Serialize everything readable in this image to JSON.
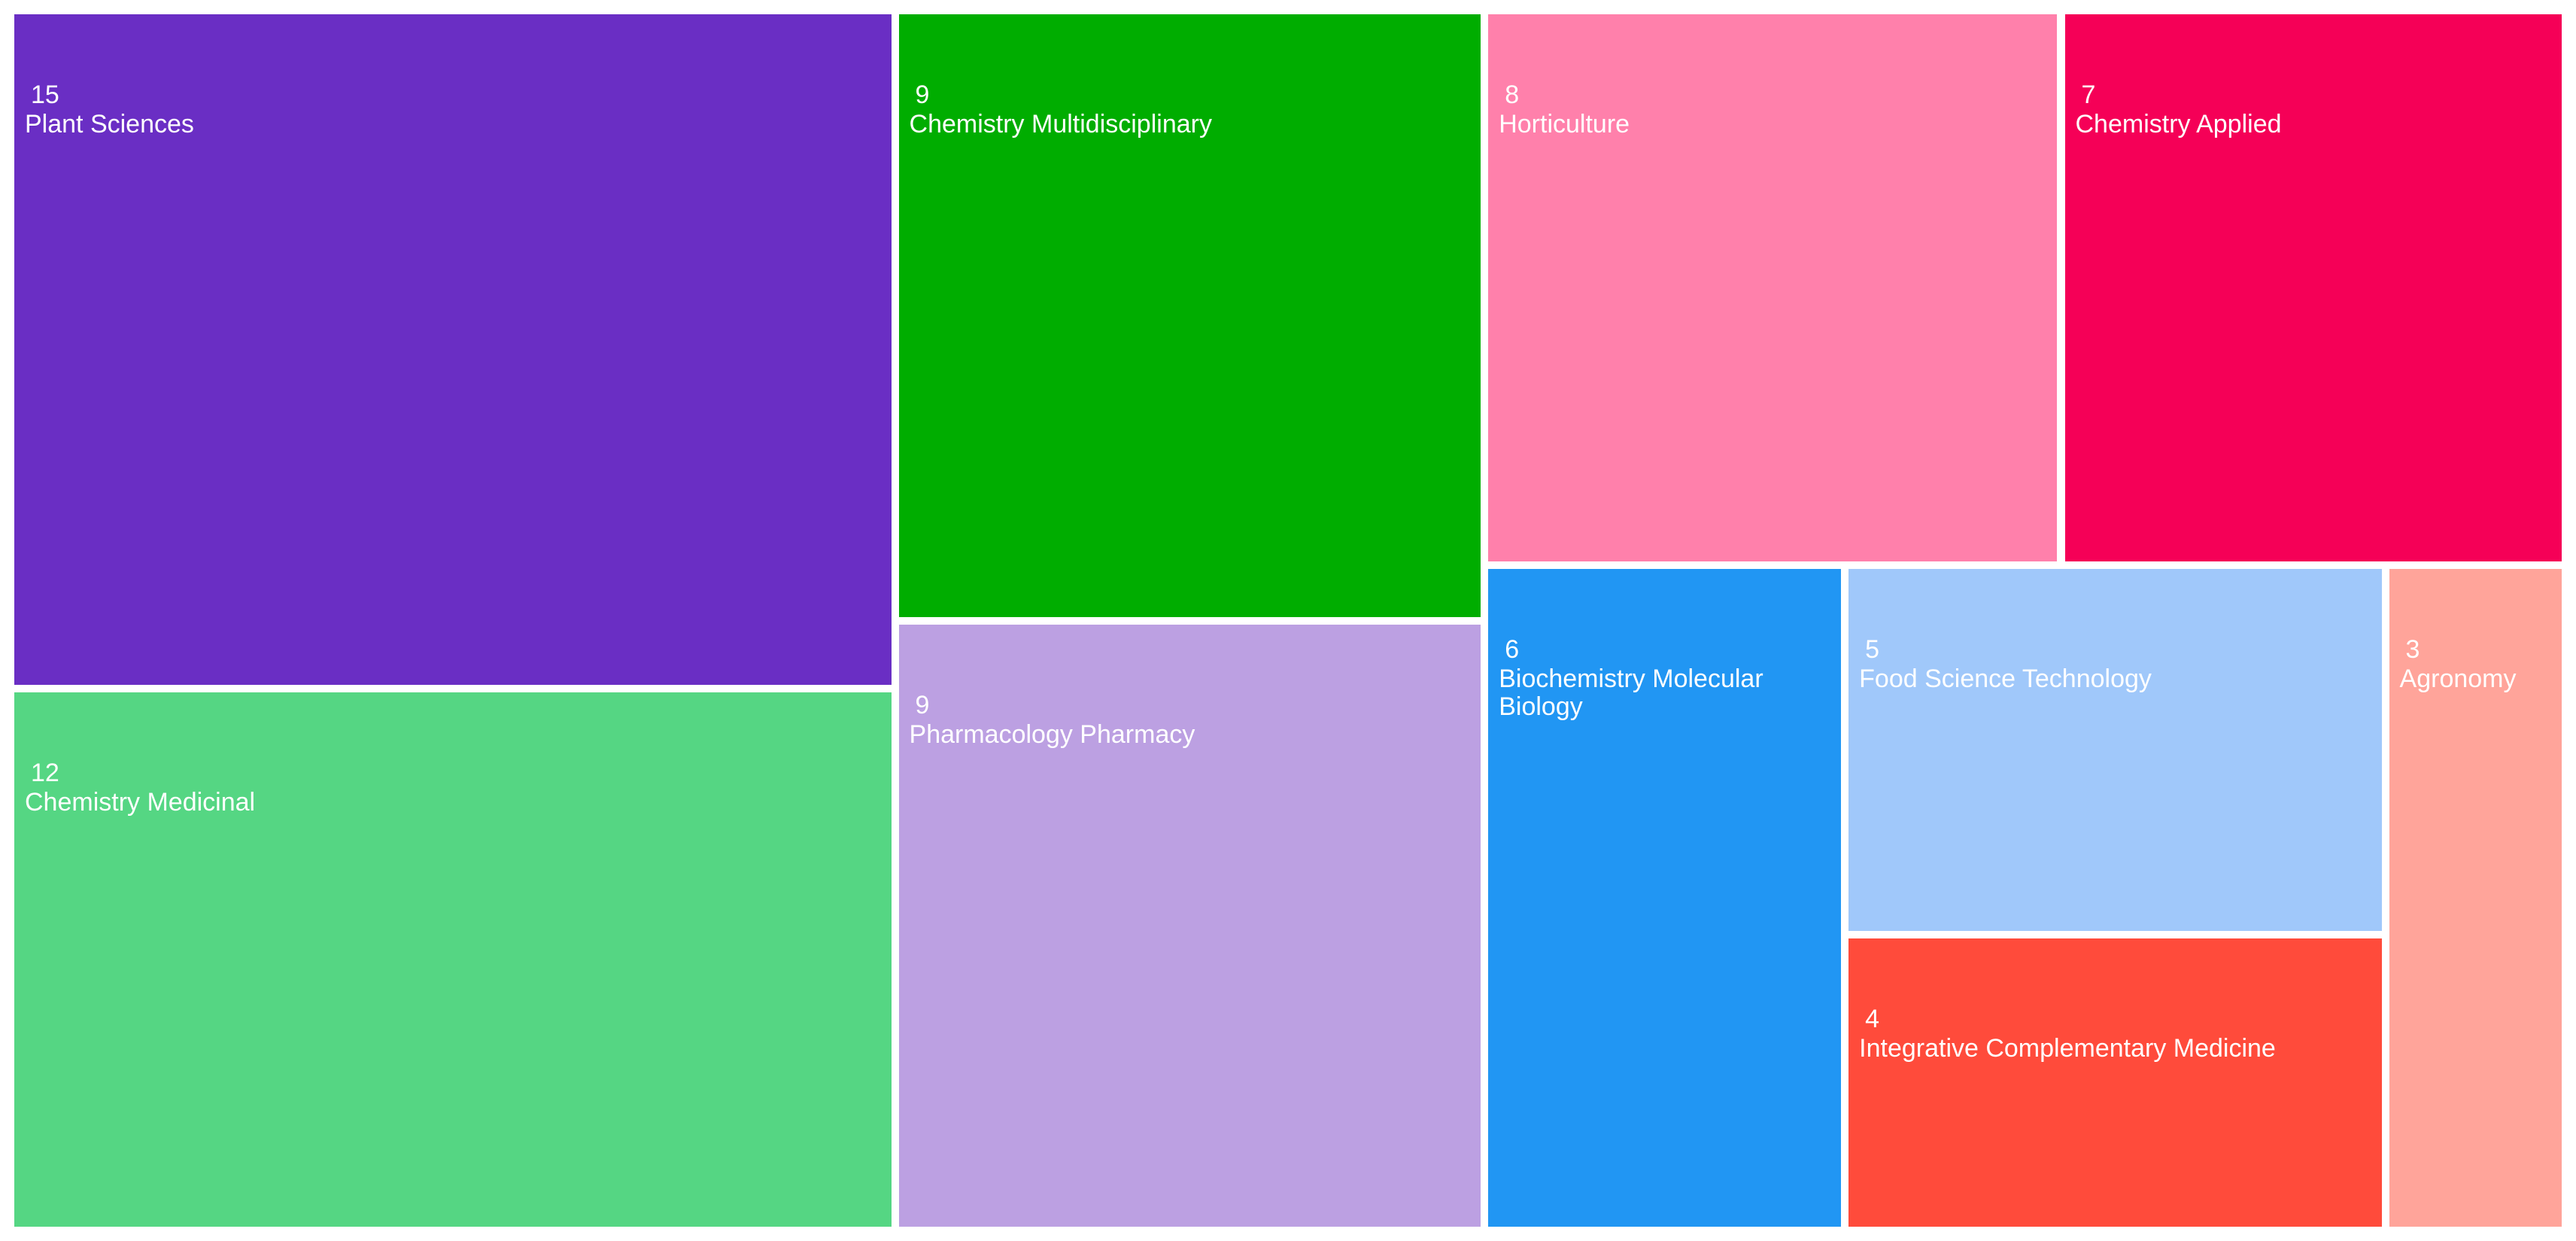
{
  "chart_data": {
    "type": "treemap",
    "categories": [
      "Plant Sciences",
      "Chemistry Medicinal",
      "Chemistry Multidisciplinary",
      "Pharmacology Pharmacy",
      "Horticulture",
      "Chemistry Applied",
      "Biochemistry Molecular Biology",
      "Food Science Technology",
      "Integrative Complementary Medicine",
      "Agronomy"
    ],
    "values": [
      15,
      12,
      9,
      9,
      8,
      7,
      6,
      5,
      4,
      3
    ],
    "colors": [
      "#6a2ec4",
      "#55d683",
      "#00ad00",
      "#bca0e2",
      "#ff80ab",
      "#f50057",
      "#2196f3",
      "#a0c8fa",
      "#ff4b3b",
      "#ffa49a"
    ]
  }
}
